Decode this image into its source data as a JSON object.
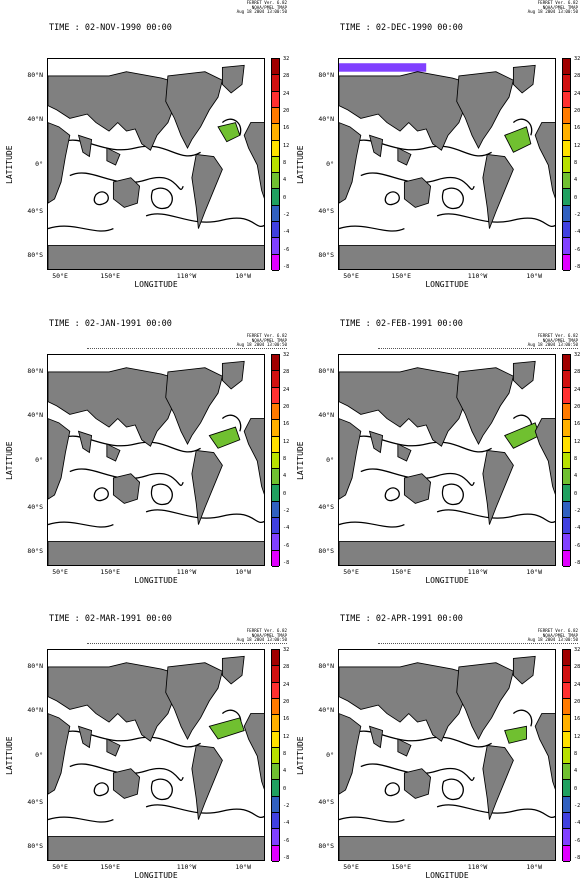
{
  "figure": {
    "colors": {
      "land": "#808080",
      "ocean": "#ffffff",
      "contour": "#000000"
    },
    "footer": {
      "line1": "FERRET Ver. 6.82",
      "line2": "NOAA/PMEL TMAP",
      "line3": "Aug 18 2004 13:00:50"
    },
    "axes": {
      "ylabel": "LATITUDE",
      "xlabel": "LONGITUDE",
      "lat_ticks": [
        "80°N",
        "40°N",
        "0°",
        "40°S",
        "80°S"
      ],
      "lon_ticks": [
        "50°E",
        "150°E",
        "110°W",
        "10°W"
      ]
    },
    "colorbar": {
      "labels": [
        "32",
        "28",
        "24",
        "20",
        "16",
        "12",
        "8",
        "4",
        "0",
        "-2",
        "-4",
        "-6",
        "-8"
      ],
      "colors": [
        "#a00000",
        "#d01010",
        "#ff3030",
        "#ff7a00",
        "#ffb000",
        "#ffe000",
        "#b8e000",
        "#70c030",
        "#20a060",
        "#3060c0",
        "#4040e0",
        "#8040ff",
        "#e000ff"
      ]
    }
  },
  "panels": [
    {
      "time": "TIME : 02-NOV-1990 00:00"
    },
    {
      "time": "TIME : 02-DEC-1990 00:00"
    },
    {
      "time": "TIME : 02-JAN-1991 00:00"
    },
    {
      "time": "TIME : 02-FEB-1991 00:00"
    },
    {
      "time": "TIME : 02-MAR-1991 00:00"
    },
    {
      "time": "TIME : 02-APR-1991 00:00"
    }
  ],
  "chart_data": [
    {
      "type": "heatmap",
      "title": "TIME : 02-NOV-1990 00:00",
      "xlabel": "LONGITUDE",
      "ylabel": "LATITUDE",
      "ylim": [
        -90,
        90
      ],
      "colorbar_range": [
        -8,
        32
      ]
    },
    {
      "type": "heatmap",
      "title": "TIME : 02-DEC-1990 00:00",
      "xlabel": "LONGITUDE",
      "ylabel": "LATITUDE",
      "ylim": [
        -90,
        90
      ],
      "colorbar_range": [
        -8,
        32
      ]
    },
    {
      "type": "heatmap",
      "title": "TIME : 02-JAN-1991 00:00",
      "xlabel": "LONGITUDE",
      "ylabel": "LATITUDE",
      "ylim": [
        -90,
        90
      ],
      "colorbar_range": [
        -8,
        32
      ]
    },
    {
      "type": "heatmap",
      "title": "TIME : 02-FEB-1991 00:00",
      "xlabel": "LONGITUDE",
      "ylabel": "LATITUDE",
      "ylim": [
        -90,
        90
      ],
      "colorbar_range": [
        -8,
        32
      ]
    },
    {
      "type": "heatmap",
      "title": "TIME : 02-MAR-1991 00:00",
      "xlabel": "LONGITUDE",
      "ylabel": "LATITUDE",
      "ylim": [
        -90,
        90
      ],
      "colorbar_range": [
        -8,
        32
      ]
    },
    {
      "type": "heatmap",
      "title": "TIME : 02-APR-1991 00:00",
      "xlabel": "LONGITUDE",
      "ylabel": "LATITUDE",
      "ylim": [
        -90,
        90
      ],
      "colorbar_range": [
        -8,
        32
      ]
    }
  ]
}
